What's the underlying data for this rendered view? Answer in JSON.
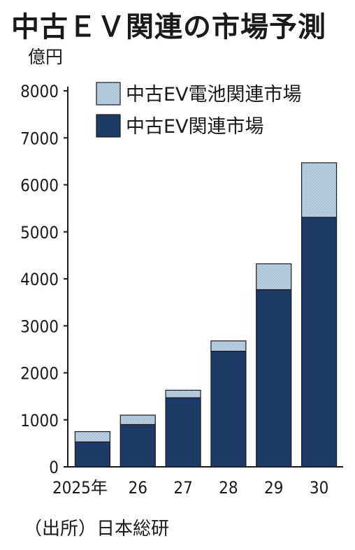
{
  "title": "中古ＥＶ関連の市場予測",
  "unit": "億円",
  "source": "（出所）日本総研",
  "colors": {
    "base": "#1e3a66",
    "battery": "#b9cfe3",
    "stroke": "#1a1a1a"
  },
  "chart_data": {
    "type": "bar",
    "stacked": true,
    "categories": [
      "2025年",
      "26",
      "27",
      "28",
      "29",
      "30"
    ],
    "series": [
      {
        "name": "中古EV関連市場",
        "values": [
          530,
          900,
          1470,
          2460,
          3770,
          5310
        ]
      },
      {
        "name": "中古EV電池関連市場",
        "values": [
          220,
          200,
          160,
          220,
          550,
          1160
        ]
      }
    ],
    "y_ticks": [
      0,
      1000,
      2000,
      3000,
      4000,
      5000,
      6000,
      7000,
      8000
    ],
    "ylim": [
      0,
      8000
    ],
    "legend_position": "top-right",
    "grid": false
  }
}
